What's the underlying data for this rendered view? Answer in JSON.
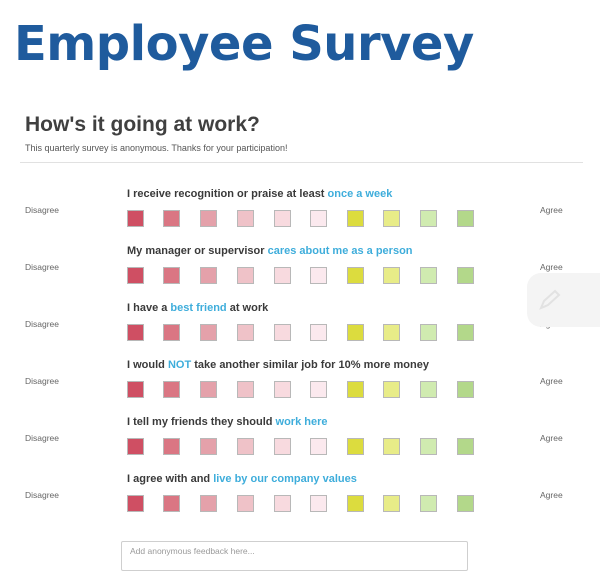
{
  "banner": {
    "title": "Employee Survey"
  },
  "survey": {
    "title": "How's it going at work?",
    "subtitle": "This quarterly survey is anonymous. Thanks for your participation!"
  },
  "scale": {
    "left_label": "Disagree",
    "right_label": "Agree",
    "colors": [
      "#cf4f63",
      "#da7683",
      "#e4a1aa",
      "#efc2c8",
      "#f8dadf",
      "#fbe9ee",
      "#dcdc3e",
      "#e8ec88",
      "#d0ebb0",
      "#b3d88a"
    ]
  },
  "questions": [
    {
      "pre": "I receive recognition or praise at least ",
      "hl": "once a week",
      "post": ""
    },
    {
      "pre": "My manager or supervisor ",
      "hl": "cares about me as a person",
      "post": ""
    },
    {
      "pre": "I have a ",
      "hl": "best friend",
      "post": " at work"
    },
    {
      "pre": "I would ",
      "hl": "NOT",
      "post": " take another similar job for 10% more money"
    },
    {
      "pre": "I tell my friends they should ",
      "hl": "work here",
      "post": ""
    },
    {
      "pre": "I agree with and ",
      "hl": "live by our company values",
      "post": ""
    }
  ],
  "feedback": {
    "placeholder": "Add anonymous feedback here..."
  },
  "icons": {
    "side_tab": "pen-icon"
  }
}
